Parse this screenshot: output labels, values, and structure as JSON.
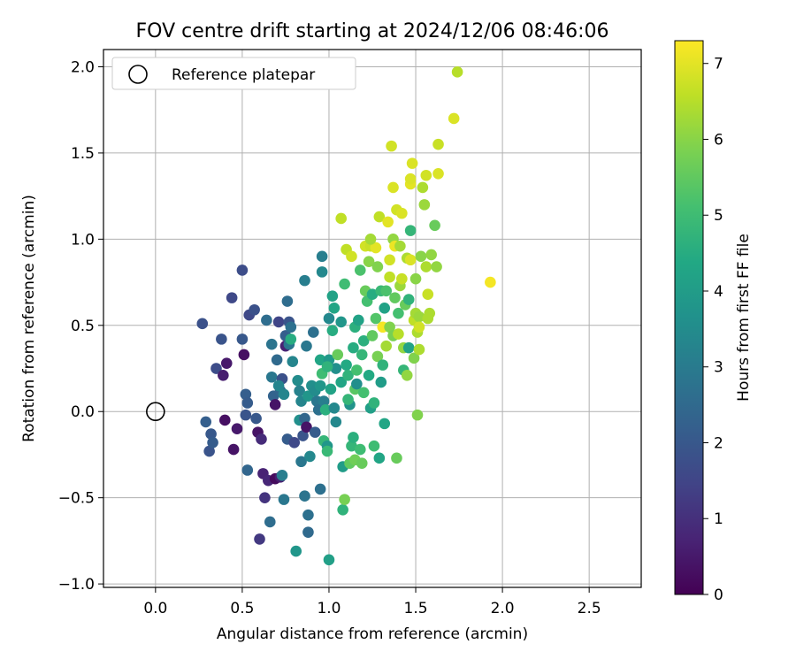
{
  "chart_data": {
    "type": "scatter",
    "title": "FOV centre drift starting at 2024/12/06 08:46:06",
    "xlabel": "Angular distance from reference (arcmin)",
    "ylabel": "Rotation from reference (arcmin)",
    "xlim": [
      -0.3,
      2.8
    ],
    "ylim": [
      -1.02,
      2.1
    ],
    "xticks": [
      0.0,
      0.5,
      1.0,
      1.5,
      2.0,
      2.5
    ],
    "xtick_labels": [
      "0.0",
      "0.5",
      "1.0",
      "1.5",
      "2.0",
      "2.5"
    ],
    "yticks": [
      -1.0,
      -0.5,
      0.0,
      0.5,
      1.0,
      1.5,
      2.0
    ],
    "ytick_labels": [
      "−1.0",
      "−0.5",
      "0.0",
      "0.5",
      "1.0",
      "1.5",
      "2.0"
    ],
    "grid": true,
    "legend": {
      "placement": "top-left",
      "entries": [
        "Reference platepar"
      ]
    },
    "reference_point": {
      "label": "Reference platepar",
      "x": 0.0,
      "y": 0.0
    },
    "colorbar": {
      "label": "Hours from first FF file",
      "colormap": "viridis",
      "range": [
        0,
        7.3
      ],
      "ticks": [
        0,
        1,
        2,
        3,
        4,
        5,
        6,
        7
      ],
      "tick_labels": [
        "0",
        "1",
        "2",
        "3",
        "4",
        "5",
        "6",
        "7"
      ]
    },
    "points": [
      [
        0.27,
        0.51,
        1.8
      ],
      [
        0.29,
        -0.06,
        2.2
      ],
      [
        0.32,
        -0.13,
        2.0
      ],
      [
        0.31,
        -0.23,
        1.9
      ],
      [
        0.33,
        -0.18,
        2.1
      ],
      [
        0.35,
        0.25,
        1.7
      ],
      [
        0.38,
        0.42,
        1.9
      ],
      [
        0.39,
        0.21,
        0.6
      ],
      [
        0.4,
        -0.05,
        0.3
      ],
      [
        0.41,
        0.28,
        0.5
      ],
      [
        0.45,
        -0.22,
        0.4
      ],
      [
        0.44,
        0.66,
        1.6
      ],
      [
        0.47,
        -0.1,
        0.5
      ],
      [
        0.5,
        0.42,
        2.0
      ],
      [
        0.5,
        0.82,
        1.7
      ],
      [
        0.51,
        0.33,
        0.3
      ],
      [
        0.52,
        0.1,
        2.2
      ],
      [
        0.53,
        0.05,
        2.1
      ],
      [
        0.52,
        -0.02,
        1.9
      ],
      [
        0.54,
        0.56,
        1.6
      ],
      [
        0.53,
        -0.34,
        2.4
      ],
      [
        0.57,
        0.59,
        1.8
      ],
      [
        0.59,
        -0.12,
        0.4
      ],
      [
        0.6,
        -0.74,
        1.2
      ],
      [
        0.61,
        -0.16,
        0.9
      ],
      [
        0.62,
        -0.36,
        0.7
      ],
      [
        0.63,
        -0.5,
        1.1
      ],
      [
        0.64,
        0.53,
        2.6
      ],
      [
        0.65,
        -0.4,
        0.8
      ],
      [
        0.66,
        -0.64,
        2.6
      ],
      [
        0.67,
        0.2,
        2.9
      ],
      [
        0.67,
        0.39,
        2.8
      ],
      [
        0.68,
        0.09,
        2.3
      ],
      [
        0.69,
        0.04,
        0.4
      ],
      [
        0.7,
        0.3,
        2.5
      ],
      [
        0.71,
        0.52,
        1.5
      ],
      [
        0.69,
        -0.39,
        0.2
      ],
      [
        0.72,
        -0.38,
        0.6
      ],
      [
        0.72,
        0.12,
        2.4
      ],
      [
        0.73,
        0.19,
        1.8
      ],
      [
        0.73,
        -0.37,
        3.1
      ],
      [
        0.74,
        0.1,
        3.3
      ],
      [
        0.74,
        -0.51,
        2.9
      ],
      [
        0.75,
        0.38,
        0.7
      ],
      [
        0.75,
        0.44,
        2.2
      ],
      [
        0.76,
        0.64,
        2.6
      ],
      [
        0.77,
        0.39,
        2.9
      ],
      [
        0.77,
        0.52,
        1.9
      ],
      [
        0.78,
        0.49,
        2.7
      ],
      [
        0.78,
        0.42,
        4.5
      ],
      [
        0.79,
        0.29,
        3.3
      ],
      [
        0.76,
        -0.16,
        2.1
      ],
      [
        0.8,
        -0.18,
        1.6
      ],
      [
        0.81,
        -0.81,
        3.8
      ],
      [
        0.82,
        0.18,
        3.5
      ],
      [
        0.83,
        -0.05,
        3.6
      ],
      [
        0.83,
        0.12,
        3.2
      ],
      [
        0.84,
        0.06,
        3.3
      ],
      [
        0.84,
        -0.29,
        2.9
      ],
      [
        0.85,
        -0.14,
        1.9
      ],
      [
        0.86,
        0.76,
        3.1
      ],
      [
        0.86,
        -0.49,
        2.8
      ],
      [
        0.86,
        -0.04,
        2.4
      ],
      [
        0.87,
        -0.09,
        0.4
      ],
      [
        0.87,
        0.38,
        2.9
      ],
      [
        0.88,
        -0.7,
        2.5
      ],
      [
        0.88,
        -0.6,
        2.7
      ],
      [
        0.88,
        0.09,
        3.8
      ],
      [
        0.89,
        -0.26,
        3.4
      ],
      [
        0.9,
        0.15,
        3.6
      ],
      [
        0.91,
        0.46,
        2.7
      ],
      [
        0.92,
        -0.12,
        2.1
      ],
      [
        0.92,
        0.12,
        3.5
      ],
      [
        0.93,
        0.06,
        2.9
      ],
      [
        0.94,
        0.01,
        2.7
      ],
      [
        0.95,
        0.3,
        4.3
      ],
      [
        0.95,
        0.15,
        3.8
      ],
      [
        0.95,
        -0.45,
        2.7
      ],
      [
        0.96,
        0.9,
        3.1
      ],
      [
        0.96,
        0.81,
        3.4
      ],
      [
        0.96,
        0.22,
        5.0
      ],
      [
        0.97,
        0.06,
        3.1
      ],
      [
        0.97,
        -0.17,
        4.8
      ],
      [
        0.98,
        0.01,
        4.6
      ],
      [
        0.99,
        -0.2,
        3.8
      ],
      [
        0.99,
        -0.23,
        4.9
      ],
      [
        1.0,
        0.54,
        3.4
      ],
      [
        1.0,
        0.3,
        3.9
      ],
      [
        1.0,
        -0.86,
        4.1
      ],
      [
        1.01,
        0.13,
        4.2
      ],
      [
        1.02,
        0.67,
        4.2
      ],
      [
        1.03,
        0.6,
        4.3
      ],
      [
        1.03,
        0.02,
        3.4
      ],
      [
        1.04,
        0.25,
        3.6
      ],
      [
        1.04,
        -0.06,
        3.4
      ],
      [
        1.05,
        0.33,
        5.6
      ],
      [
        1.07,
        0.52,
        3.8
      ],
      [
        1.07,
        0.17,
        4.3
      ],
      [
        1.07,
        1.12,
        6.6
      ],
      [
        1.08,
        -0.32,
        4.0
      ],
      [
        1.08,
        -0.57,
        4.7
      ],
      [
        1.09,
        -0.51,
        5.8
      ],
      [
        1.09,
        0.74,
        5.0
      ],
      [
        1.1,
        0.94,
        6.6
      ],
      [
        1.1,
        0.27,
        4.4
      ],
      [
        1.11,
        0.21,
        4.7
      ],
      [
        1.12,
        0.04,
        3.7
      ],
      [
        1.12,
        -0.3,
        5.5
      ],
      [
        1.13,
        0.9,
        6.8
      ],
      [
        1.13,
        -0.2,
        4.8
      ],
      [
        1.14,
        -0.15,
        4.6
      ],
      [
        1.14,
        0.37,
        4.5
      ],
      [
        1.15,
        -0.28,
        5.7
      ],
      [
        1.15,
        0.49,
        4.6
      ],
      [
        1.15,
        0.13,
        5.4
      ],
      [
        1.16,
        0.16,
        3.6
      ],
      [
        1.16,
        0.24,
        5.1
      ],
      [
        1.17,
        0.53,
        4.2
      ],
      [
        1.18,
        -0.22,
        5.0
      ],
      [
        1.18,
        0.82,
        5.2
      ],
      [
        1.19,
        -0.3,
        5.6
      ],
      [
        1.19,
        0.33,
        4.8
      ],
      [
        1.2,
        0.41,
        4.6
      ],
      [
        1.2,
        0.11,
        5.1
      ],
      [
        1.21,
        0.7,
        5.6
      ],
      [
        1.21,
        0.96,
        6.8
      ],
      [
        1.22,
        0.64,
        5.1
      ],
      [
        1.23,
        0.21,
        4.4
      ],
      [
        1.23,
        0.87,
        6.0
      ],
      [
        1.24,
        0.96,
        6.7
      ],
      [
        1.24,
        0.02,
        4.1
      ],
      [
        1.25,
        0.44,
        5.5
      ],
      [
        1.25,
        0.68,
        4.5
      ],
      [
        1.26,
        0.05,
        4.7
      ],
      [
        1.26,
        -0.2,
        5.0
      ],
      [
        1.27,
        0.95,
        7.0
      ],
      [
        1.27,
        0.54,
        5.3
      ],
      [
        1.28,
        0.32,
        5.8
      ],
      [
        1.28,
        0.84,
        5.9
      ],
      [
        1.29,
        1.13,
        6.6
      ],
      [
        1.29,
        -0.27,
        4.3
      ],
      [
        1.3,
        0.7,
        4.9
      ],
      [
        1.3,
        0.17,
        4.0
      ],
      [
        1.31,
        0.49,
        7.2
      ],
      [
        1.31,
        0.27,
        4.7
      ],
      [
        1.32,
        0.6,
        4.2
      ],
      [
        1.32,
        -0.07,
        4.3
      ],
      [
        1.33,
        0.38,
        6.3
      ],
      [
        1.33,
        0.7,
        5.2
      ],
      [
        1.34,
        1.1,
        7.0
      ],
      [
        1.35,
        0.88,
        6.8
      ],
      [
        1.35,
        0.78,
        6.6
      ],
      [
        1.35,
        0.49,
        5.9
      ],
      [
        1.36,
        1.54,
        6.8
      ],
      [
        1.37,
        0.44,
        5.8
      ],
      [
        1.37,
        1.0,
        6.1
      ],
      [
        1.38,
        0.66,
        5.5
      ],
      [
        1.38,
        0.96,
        7.1
      ],
      [
        1.39,
        1.17,
        6.8
      ],
      [
        1.39,
        -0.27,
        5.6
      ],
      [
        1.4,
        0.45,
        6.5
      ],
      [
        1.4,
        0.57,
        5.1
      ],
      [
        1.41,
        0.96,
        6.3
      ],
      [
        1.41,
        0.73,
        6.2
      ],
      [
        1.42,
        1.15,
        6.9
      ],
      [
        1.42,
        0.77,
        6.7
      ],
      [
        1.43,
        0.24,
        4.8
      ],
      [
        1.43,
        0.37,
        6.1
      ],
      [
        1.44,
        0.62,
        5.6
      ],
      [
        1.45,
        0.21,
        6.1
      ],
      [
        1.45,
        0.89,
        6.4
      ],
      [
        1.46,
        0.65,
        4.7
      ],
      [
        1.46,
        0.37,
        4.2
      ],
      [
        1.47,
        1.05,
        4.8
      ],
      [
        1.47,
        0.88,
        6.9
      ],
      [
        1.47,
        1.32,
        7.0
      ],
      [
        1.48,
        1.44,
        6.9
      ],
      [
        1.49,
        0.53,
        6.6
      ],
      [
        1.49,
        0.31,
        5.9
      ],
      [
        1.5,
        0.77,
        6.0
      ],
      [
        1.5,
        0.57,
        6.3
      ],
      [
        1.51,
        0.46,
        6.4
      ],
      [
        1.51,
        -0.02,
        5.9
      ],
      [
        1.52,
        0.55,
        6.2
      ],
      [
        1.52,
        0.49,
        6.8
      ],
      [
        1.52,
        0.36,
        6.4
      ],
      [
        1.53,
        0.9,
        6.0
      ],
      [
        1.54,
        1.3,
        6.4
      ],
      [
        1.55,
        1.2,
        6.2
      ],
      [
        1.56,
        1.37,
        6.8
      ],
      [
        1.56,
        0.84,
        6.4
      ],
      [
        1.57,
        0.54,
        6.4
      ],
      [
        1.57,
        0.68,
        6.7
      ],
      [
        1.58,
        0.57,
        6.4
      ],
      [
        1.59,
        0.91,
        6.1
      ],
      [
        1.61,
        1.08,
        5.6
      ],
      [
        1.62,
        0.84,
        6.1
      ],
      [
        1.63,
        1.38,
        6.9
      ],
      [
        1.63,
        1.55,
        6.7
      ],
      [
        1.72,
        1.7,
        6.9
      ],
      [
        1.74,
        1.97,
        6.5
      ],
      [
        1.93,
        0.75,
        7.2
      ],
      [
        1.47,
        1.35,
        6.9
      ],
      [
        1.37,
        1.3,
        6.9
      ],
      [
        1.24,
        1.0,
        6.3
      ],
      [
        0.99,
        0.26,
        4.7
      ],
      [
        1.02,
        0.47,
        4.5
      ],
      [
        0.71,
        0.15,
        3.3
      ],
      [
        0.58,
        -0.04,
        2.0
      ],
      [
        1.11,
        0.07,
        4.8
      ]
    ]
  }
}
